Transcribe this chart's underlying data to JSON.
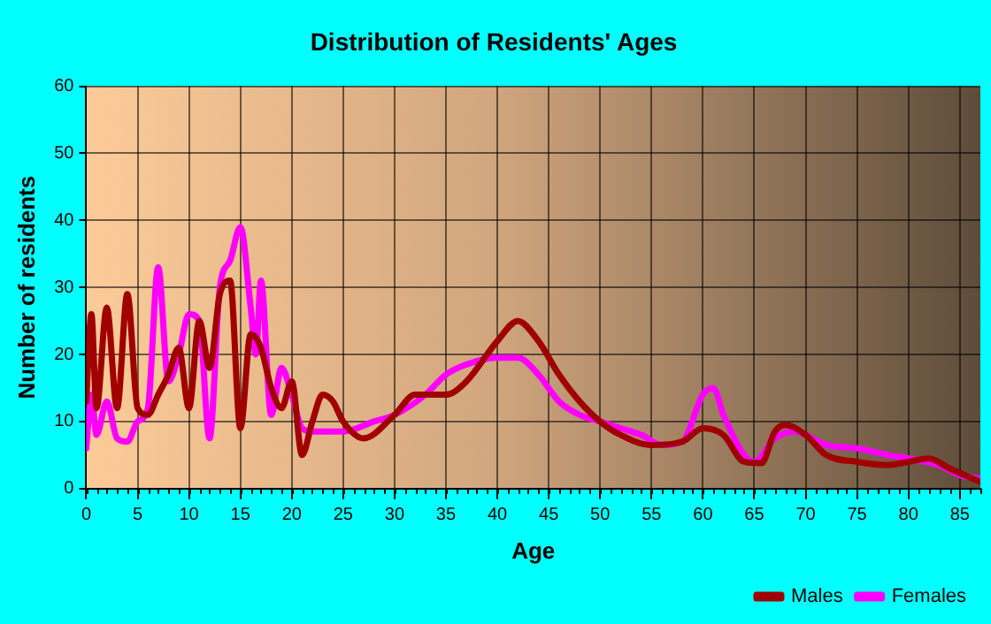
{
  "chart_data": {
    "type": "line",
    "title": "Distribution of Residents' Ages",
    "xlabel": "Age",
    "ylabel": "Number of residents",
    "xlim": [
      0,
      87
    ],
    "xticks": [
      0,
      5,
      10,
      15,
      20,
      25,
      30,
      35,
      40,
      45,
      50,
      55,
      60,
      65,
      70,
      75,
      80,
      85
    ],
    "ylim": [
      0,
      60
    ],
    "yticks": [
      0,
      10,
      20,
      30,
      40,
      50,
      60
    ],
    "grid": true,
    "legend": "bottom right",
    "marker": "none",
    "line_style": "solid",
    "series": [
      {
        "name": "Males",
        "color": "#a00000",
        "x": [
          0,
          0.5,
          1,
          2,
          3,
          4,
          5,
          6,
          7,
          8,
          9,
          10,
          11,
          12,
          13,
          14,
          15,
          16,
          17,
          18,
          19,
          20,
          21,
          22,
          23,
          24,
          25,
          27,
          30,
          32,
          35,
          37,
          40,
          42,
          44,
          46,
          48,
          50,
          52,
          55,
          58,
          60,
          62,
          64,
          65.7,
          67,
          68,
          70,
          72,
          75,
          78,
          80,
          82,
          84,
          87
        ],
        "values": [
          13,
          26,
          12,
          27,
          12,
          29,
          12,
          11,
          14,
          17,
          21,
          12,
          25,
          18,
          29,
          31,
          9,
          23,
          21,
          15,
          12,
          16,
          5,
          10,
          14,
          13,
          10,
          7.5,
          11,
          14,
          14,
          16,
          22,
          25,
          22,
          17,
          13,
          10,
          8,
          6.5,
          7,
          9,
          8,
          4,
          3.8,
          8.5,
          9.5,
          8,
          5,
          4,
          3.5,
          4,
          4.5,
          3,
          1
        ]
      },
      {
        "name": "Females",
        "color": "#ff00ff",
        "x": [
          0,
          0.5,
          1,
          2,
          3,
          4,
          5,
          6,
          7,
          8,
          9,
          10,
          11,
          12,
          13,
          14,
          15,
          16,
          16.5,
          17,
          18,
          19,
          20,
          21,
          22,
          25,
          28,
          30,
          33,
          35,
          38,
          40,
          42,
          44,
          46,
          48,
          50,
          52,
          54,
          56,
          58,
          60,
          61,
          62,
          64,
          65,
          67,
          69,
          70,
          72,
          75,
          78,
          80,
          83,
          85,
          87
        ],
        "values": [
          6,
          14,
          8,
          13,
          7.5,
          7,
          10,
          12,
          33,
          16,
          20,
          26,
          25,
          7.5,
          30,
          34,
          39,
          27,
          20,
          31,
          11,
          18,
          14,
          9,
          8.5,
          8.5,
          10,
          11,
          14,
          17,
          19,
          19.5,
          19.5,
          17,
          13,
          11,
          10,
          9,
          8,
          6.5,
          7,
          14,
          15,
          11,
          5,
          4,
          7.5,
          8.5,
          8,
          6.5,
          6,
          5,
          4.5,
          3.5,
          2,
          1.5
        ]
      }
    ]
  }
}
